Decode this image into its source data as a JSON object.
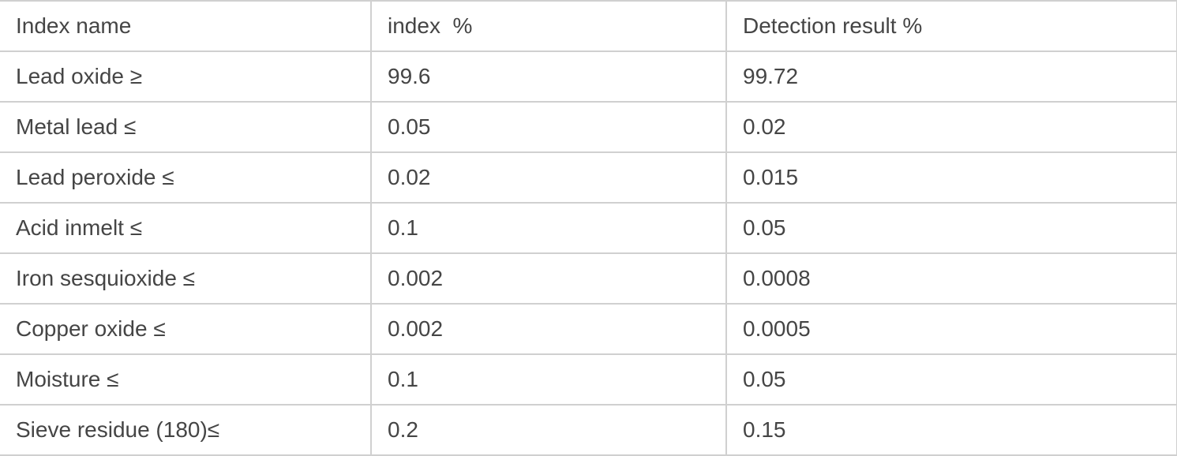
{
  "table": {
    "columns": [
      {
        "label": "Index name"
      },
      {
        "label": "index  %"
      },
      {
        "label": "Detection result %"
      }
    ],
    "rows": [
      {
        "name": "Lead oxide ≥",
        "index": "99.6",
        "result": "99.72"
      },
      {
        "name": "Metal lead ≤",
        "index": "0.05",
        "result": "0.02"
      },
      {
        "name": "Lead peroxide ≤",
        "index": "0.02",
        "result": "0.015"
      },
      {
        "name": "Acid inmelt ≤",
        "index": "0.1",
        "result": "0.05"
      },
      {
        "name": "Iron sesquioxide ≤",
        "index": "0.002",
        "result": "0.0008"
      },
      {
        "name": "Copper oxide ≤",
        "index": "0.002",
        "result": "0.0005"
      },
      {
        "name": "Moisture ≤",
        "index": "0.1",
        "result": "0.05"
      },
      {
        "name": "Sieve residue (180)≤",
        "index": "0.2",
        "result": "0.15"
      }
    ]
  },
  "colors": {
    "background": "#ffffff",
    "border": "#d0d0d0",
    "text": "#454545"
  }
}
